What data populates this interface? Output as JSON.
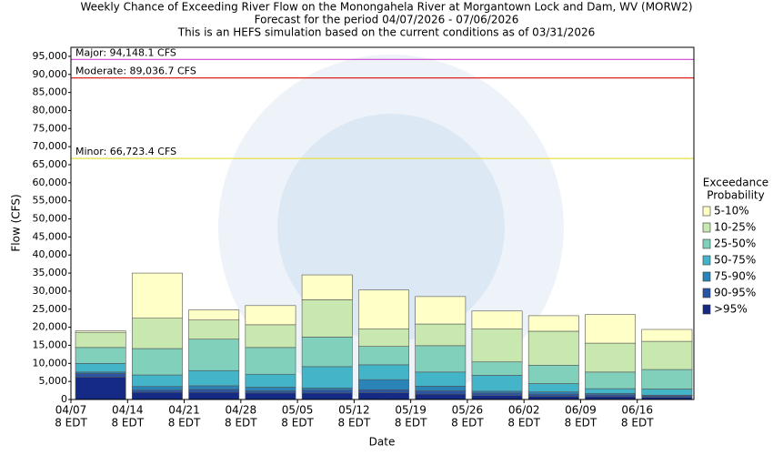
{
  "chart_data": {
    "type": "stacked-bar",
    "title": "Weekly Chance of Exceeding River Flow on the Monongahela River at Morgantown Lock and Dam, WV (MORW2)",
    "subtitle": [
      "Forecast for the period 04/07/2026 - 07/06/2026",
      "This is an HEFS simulation based on the current conditions as of 03/31/2026"
    ],
    "x_label": "Date",
    "y_label": "Flow (CFS)",
    "legend_title": [
      "Exceedance",
      "Probability"
    ],
    "categories": [
      [
        "04/07",
        "8 EDT"
      ],
      [
        "04/14",
        "8 EDT"
      ],
      [
        "04/21",
        "8 EDT"
      ],
      [
        "04/28",
        "8 EDT"
      ],
      [
        "05/05",
        "8 EDT"
      ],
      [
        "05/12",
        "8 EDT"
      ],
      [
        "05/19",
        "8 EDT"
      ],
      [
        "05/26",
        "8 EDT"
      ],
      [
        "06/02",
        "8 EDT"
      ],
      [
        "06/09",
        "8 EDT"
      ],
      [
        "06/16",
        "8 EDT"
      ]
    ],
    "series": [
      {
        "name": ">95%",
        "color": "#142a84",
        "values": [
          6200,
          2000,
          2000,
          1800,
          1800,
          1900,
          1500,
          1100,
          900,
          800,
          600
        ]
      },
      {
        "name": "90-95%",
        "color": "#2a54a4",
        "values": [
          1000,
          600,
          800,
          600,
          800,
          800,
          900,
          700,
          600,
          500,
          400
        ]
      },
      {
        "name": "75-90%",
        "color": "#2a84b8",
        "values": [
          400,
          1000,
          1000,
          1000,
          600,
          2800,
          1300,
          500,
          600,
          400,
          200
        ]
      },
      {
        "name": "50-75%",
        "color": "#44b4c8",
        "values": [
          2400,
          3200,
          4200,
          3600,
          5900,
          4100,
          3900,
          4400,
          2300,
          1300,
          1700
        ]
      },
      {
        "name": "25-50%",
        "color": "#80d0bc",
        "values": [
          4400,
          7300,
          8700,
          7400,
          8200,
          5100,
          7300,
          3700,
          5100,
          4600,
          5400
        ]
      },
      {
        "name": "10-25%",
        "color": "#c8e8b0",
        "values": [
          4200,
          8400,
          5300,
          6300,
          10300,
          4800,
          6000,
          9100,
          9400,
          8000,
          7800
        ]
      },
      {
        "name": "5-10%",
        "color": "#ffffc8",
        "values": [
          400,
          12500,
          2800,
          5300,
          6900,
          10800,
          7600,
          5000,
          4300,
          7900,
          3300
        ]
      }
    ],
    "thresholds": [
      {
        "label": "Major: 94,148.1 CFS",
        "value": 94148.1,
        "color": "#cc44cc"
      },
      {
        "label": "Moderate: 89,036.7 CFS",
        "value": 89036.7,
        "color": "#dd2222"
      },
      {
        "label": "Minor: 66,723.4 CFS",
        "value": 66723.4,
        "color": "#e8e040"
      }
    ],
    "ylim": [
      0,
      97500
    ],
    "yticks": [
      0,
      {
        "value": 5000,
        "label": "5,000"
      },
      {
        "value": 10000,
        "label": "10,000"
      },
      {
        "value": 15000,
        "label": "15,000"
      },
      {
        "value": 20000,
        "label": "20,000"
      },
      {
        "value": 25000,
        "label": "25,000"
      },
      {
        "value": 30000,
        "label": "30,000"
      },
      {
        "value": 35000,
        "label": "35,000"
      },
      {
        "value": 40000,
        "label": "40,000"
      },
      {
        "value": 45000,
        "label": "45,000"
      },
      {
        "value": 50000,
        "label": "50,000"
      },
      {
        "value": 55000,
        "label": "55,000"
      },
      {
        "value": 60000,
        "label": "60,000"
      },
      {
        "value": 65000,
        "label": "65,000"
      },
      {
        "value": 70000,
        "label": "70,000"
      },
      {
        "value": 75000,
        "label": "75,000"
      },
      {
        "value": 80000,
        "label": "80,000"
      },
      {
        "value": 85000,
        "label": "85,000"
      },
      {
        "value": 90000,
        "label": "90,000"
      },
      {
        "value": 95000,
        "label": "95,000"
      }
    ]
  }
}
